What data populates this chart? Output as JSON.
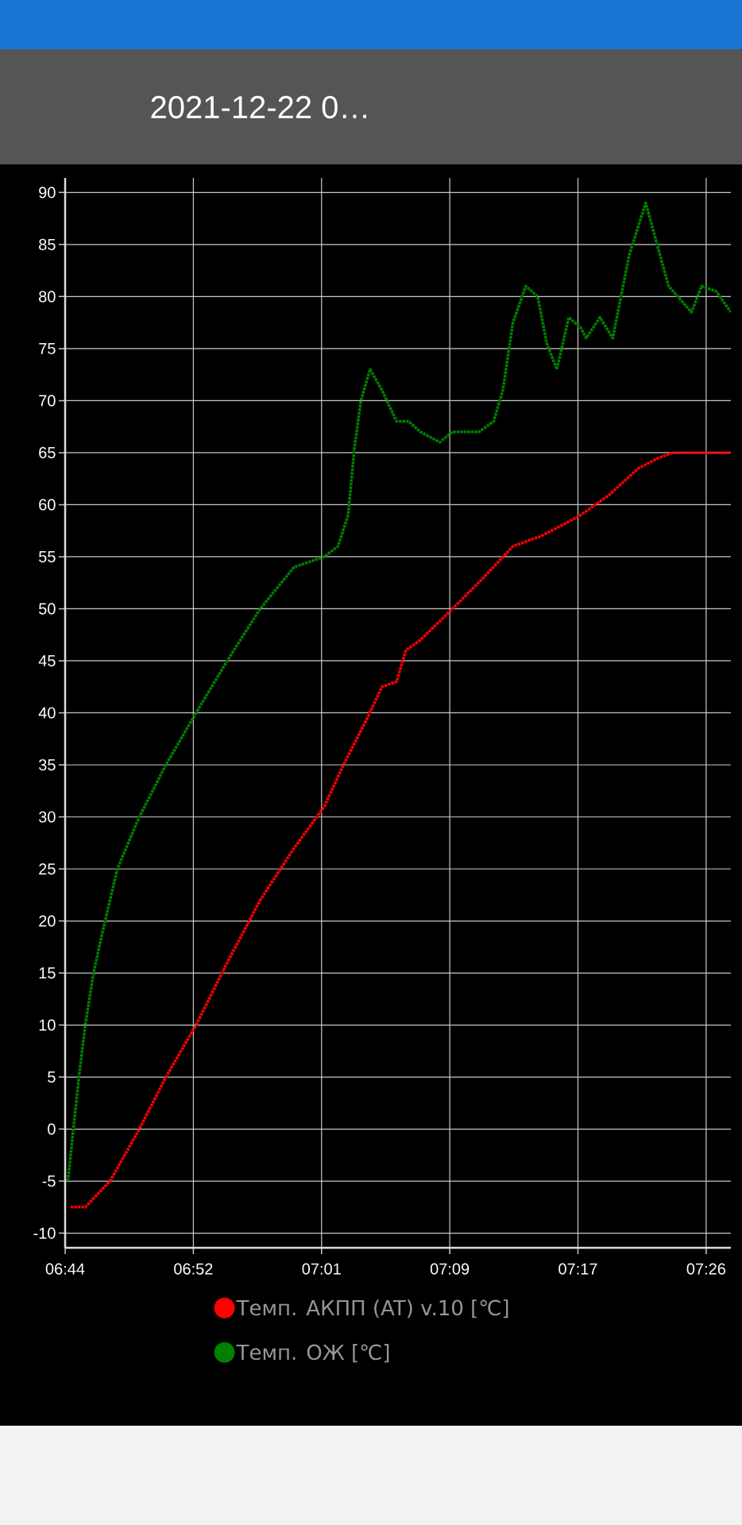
{
  "chart_data": {
    "type": "line",
    "title": "2021-12-22 0…",
    "xlim": [
      6.73,
      7.457
    ],
    "ylim": [
      -11.4,
      91.4
    ],
    "xticks": [
      {
        "value": 6.73,
        "label": "06:44"
      },
      {
        "value": 6.87,
        "label": "06:52"
      },
      {
        "value": 7.01,
        "label": "07:01"
      },
      {
        "value": 7.15,
        "label": "07:09"
      },
      {
        "value": 7.29,
        "label": "07:17"
      },
      {
        "value": 7.43,
        "label": "07:26"
      }
    ],
    "yticks": [
      -10,
      -5,
      0,
      5,
      10,
      15,
      20,
      25,
      30,
      35,
      40,
      45,
      50,
      55,
      60,
      65,
      70,
      75,
      80,
      85,
      90
    ],
    "grid": true,
    "legend": "bottom",
    "line_style": "dotted",
    "series": [
      {
        "name": "Темп. АКПП (AT) v.10 [℃]",
        "color": "#ff0000",
        "x": [
          6.736,
          6.752,
          6.768,
          6.779,
          6.811,
          6.84,
          6.873,
          6.907,
          6.943,
          6.98,
          7.013,
          7.034,
          7.06,
          7.076,
          7.092,
          7.102,
          7.118,
          7.153,
          7.187,
          7.219,
          7.25,
          7.272,
          7.293,
          7.325,
          7.356,
          7.378,
          7.394,
          7.457
        ],
        "values": [
          -7.5,
          -7.5,
          -6,
          -5,
          0,
          5,
          10,
          16,
          22,
          27,
          31,
          35,
          39.5,
          42.5,
          43,
          46,
          47,
          50,
          53,
          56,
          57,
          58,
          59,
          61,
          63.5,
          64.5,
          65,
          65
        ]
      },
      {
        "name": "Темп. ОЖ [℃]",
        "color": "#008000",
        "x": [
          6.733,
          6.739,
          6.745,
          6.752,
          6.761,
          6.771,
          6.787,
          6.811,
          6.84,
          6.873,
          6.907,
          6.943,
          6.98,
          7.013,
          7.028,
          7.039,
          7.046,
          7.053,
          7.063,
          7.076,
          7.092,
          7.105,
          7.118,
          7.139,
          7.153,
          7.182,
          7.198,
          7.208,
          7.219,
          7.233,
          7.246,
          7.256,
          7.267,
          7.28,
          7.293,
          7.299,
          7.314,
          7.328,
          7.346,
          7.364,
          7.378,
          7.389,
          7.404,
          7.414,
          7.425,
          7.441,
          7.457
        ],
        "values": [
          -5,
          0,
          5,
          10,
          15,
          19,
          25,
          30,
          35,
          40,
          45,
          50,
          54,
          55,
          56,
          59,
          65.5,
          70,
          73,
          71,
          68,
          68,
          67,
          66,
          67,
          67,
          68,
          71,
          77.5,
          81,
          80,
          75.5,
          73,
          78,
          77,
          76,
          78,
          76,
          84,
          89,
          84.5,
          81,
          79.5,
          78.5,
          81,
          80.5,
          78.5
        ]
      }
    ]
  }
}
